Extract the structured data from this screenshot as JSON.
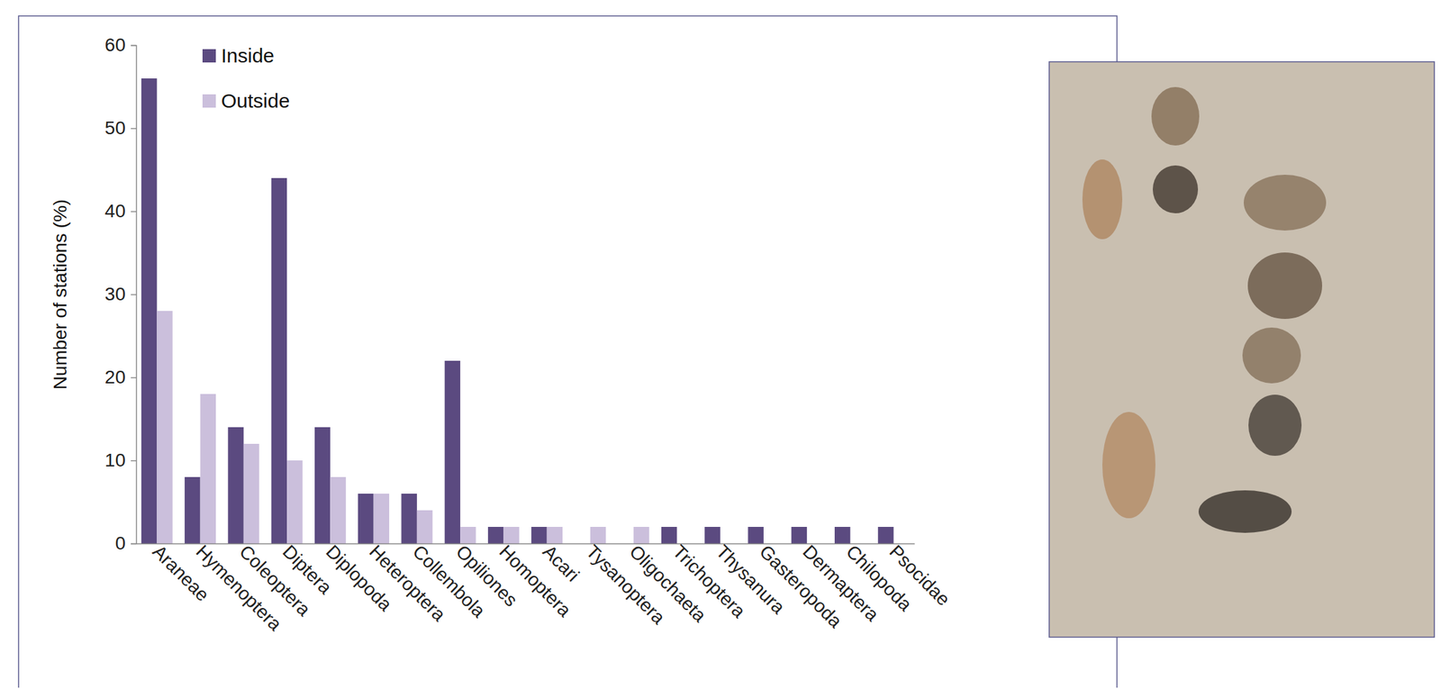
{
  "chart_data": {
    "type": "bar",
    "y_label": "Number of stations (%)",
    "categories": [
      "Araneae",
      "Hymenoptera",
      "Coleoptera",
      "Diptera",
      "Diplopoda",
      "Heteroptera",
      "Collembola",
      "Opiliones",
      "Homoptera",
      "Acari",
      "Tysanoptera",
      "Oligochaeta",
      "Trichoptera",
      "Thysanura",
      "Gasteropoda",
      "Dermaptera",
      "Chilopoda",
      "Psocidae"
    ],
    "series": [
      {
        "name": "Inside",
        "color": "#5b4a80",
        "values": [
          56,
          8,
          14,
          44,
          14,
          6,
          6,
          22,
          2,
          2,
          0,
          0,
          2,
          2,
          2,
          2,
          2,
          2
        ]
      },
      {
        "name": "Outside",
        "color": "#cbbfdc",
        "values": [
          28,
          18,
          12,
          10,
          8,
          6,
          4,
          2,
          2,
          2,
          2,
          2,
          0,
          0,
          0,
          0,
          0,
          0
        ]
      }
    ],
    "ylim": [
      0,
      60
    ],
    "yticks": [
      0,
      10,
      20,
      30,
      40,
      50,
      60
    ],
    "legend": "top-left"
  }
}
